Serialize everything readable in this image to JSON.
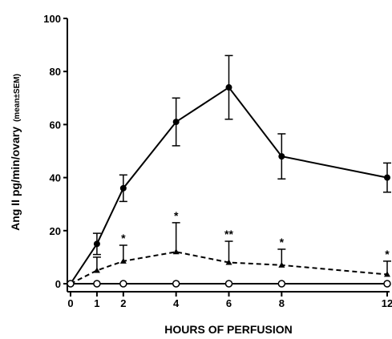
{
  "chart_data": {
    "type": "line",
    "x_label": "HOURS OF PERFUSION",
    "y_label": "Ang II pg/min/ovary",
    "y_label_note": "(mean±SEM)",
    "x": [
      0,
      1,
      2,
      4,
      6,
      8,
      12
    ],
    "xlim": [
      0,
      12
    ],
    "xticks": [
      0,
      1,
      2,
      4,
      6,
      8,
      12
    ],
    "ylim": [
      0,
      100
    ],
    "yticks": [
      0,
      20,
      40,
      60,
      80,
      100
    ],
    "grid": false,
    "series": [
      {
        "color": "#000000",
        "marker": "filled-circle",
        "dashed": false,
        "error_bars": "both",
        "values": [
          0,
          15,
          36,
          61,
          74,
          48,
          40
        ],
        "errors": [
          0,
          4,
          5,
          9,
          12,
          8.5,
          5.5
        ]
      },
      {
        "color": "#000000",
        "marker": "filled-triangle",
        "dashed": true,
        "error_bars": "up",
        "values": [
          0,
          5,
          8.5,
          12,
          8,
          7,
          3.5
        ],
        "errors": [
          0,
          5,
          6,
          11,
          8,
          6,
          5
        ],
        "significance": [
          null,
          null,
          "*",
          "*",
          "**",
          "*",
          "*"
        ]
      },
      {
        "color": "#000000",
        "marker": "open-circle",
        "dashed": false,
        "error_bars": "none",
        "values": [
          0,
          0,
          0,
          0,
          0,
          0,
          0
        ]
      }
    ]
  }
}
